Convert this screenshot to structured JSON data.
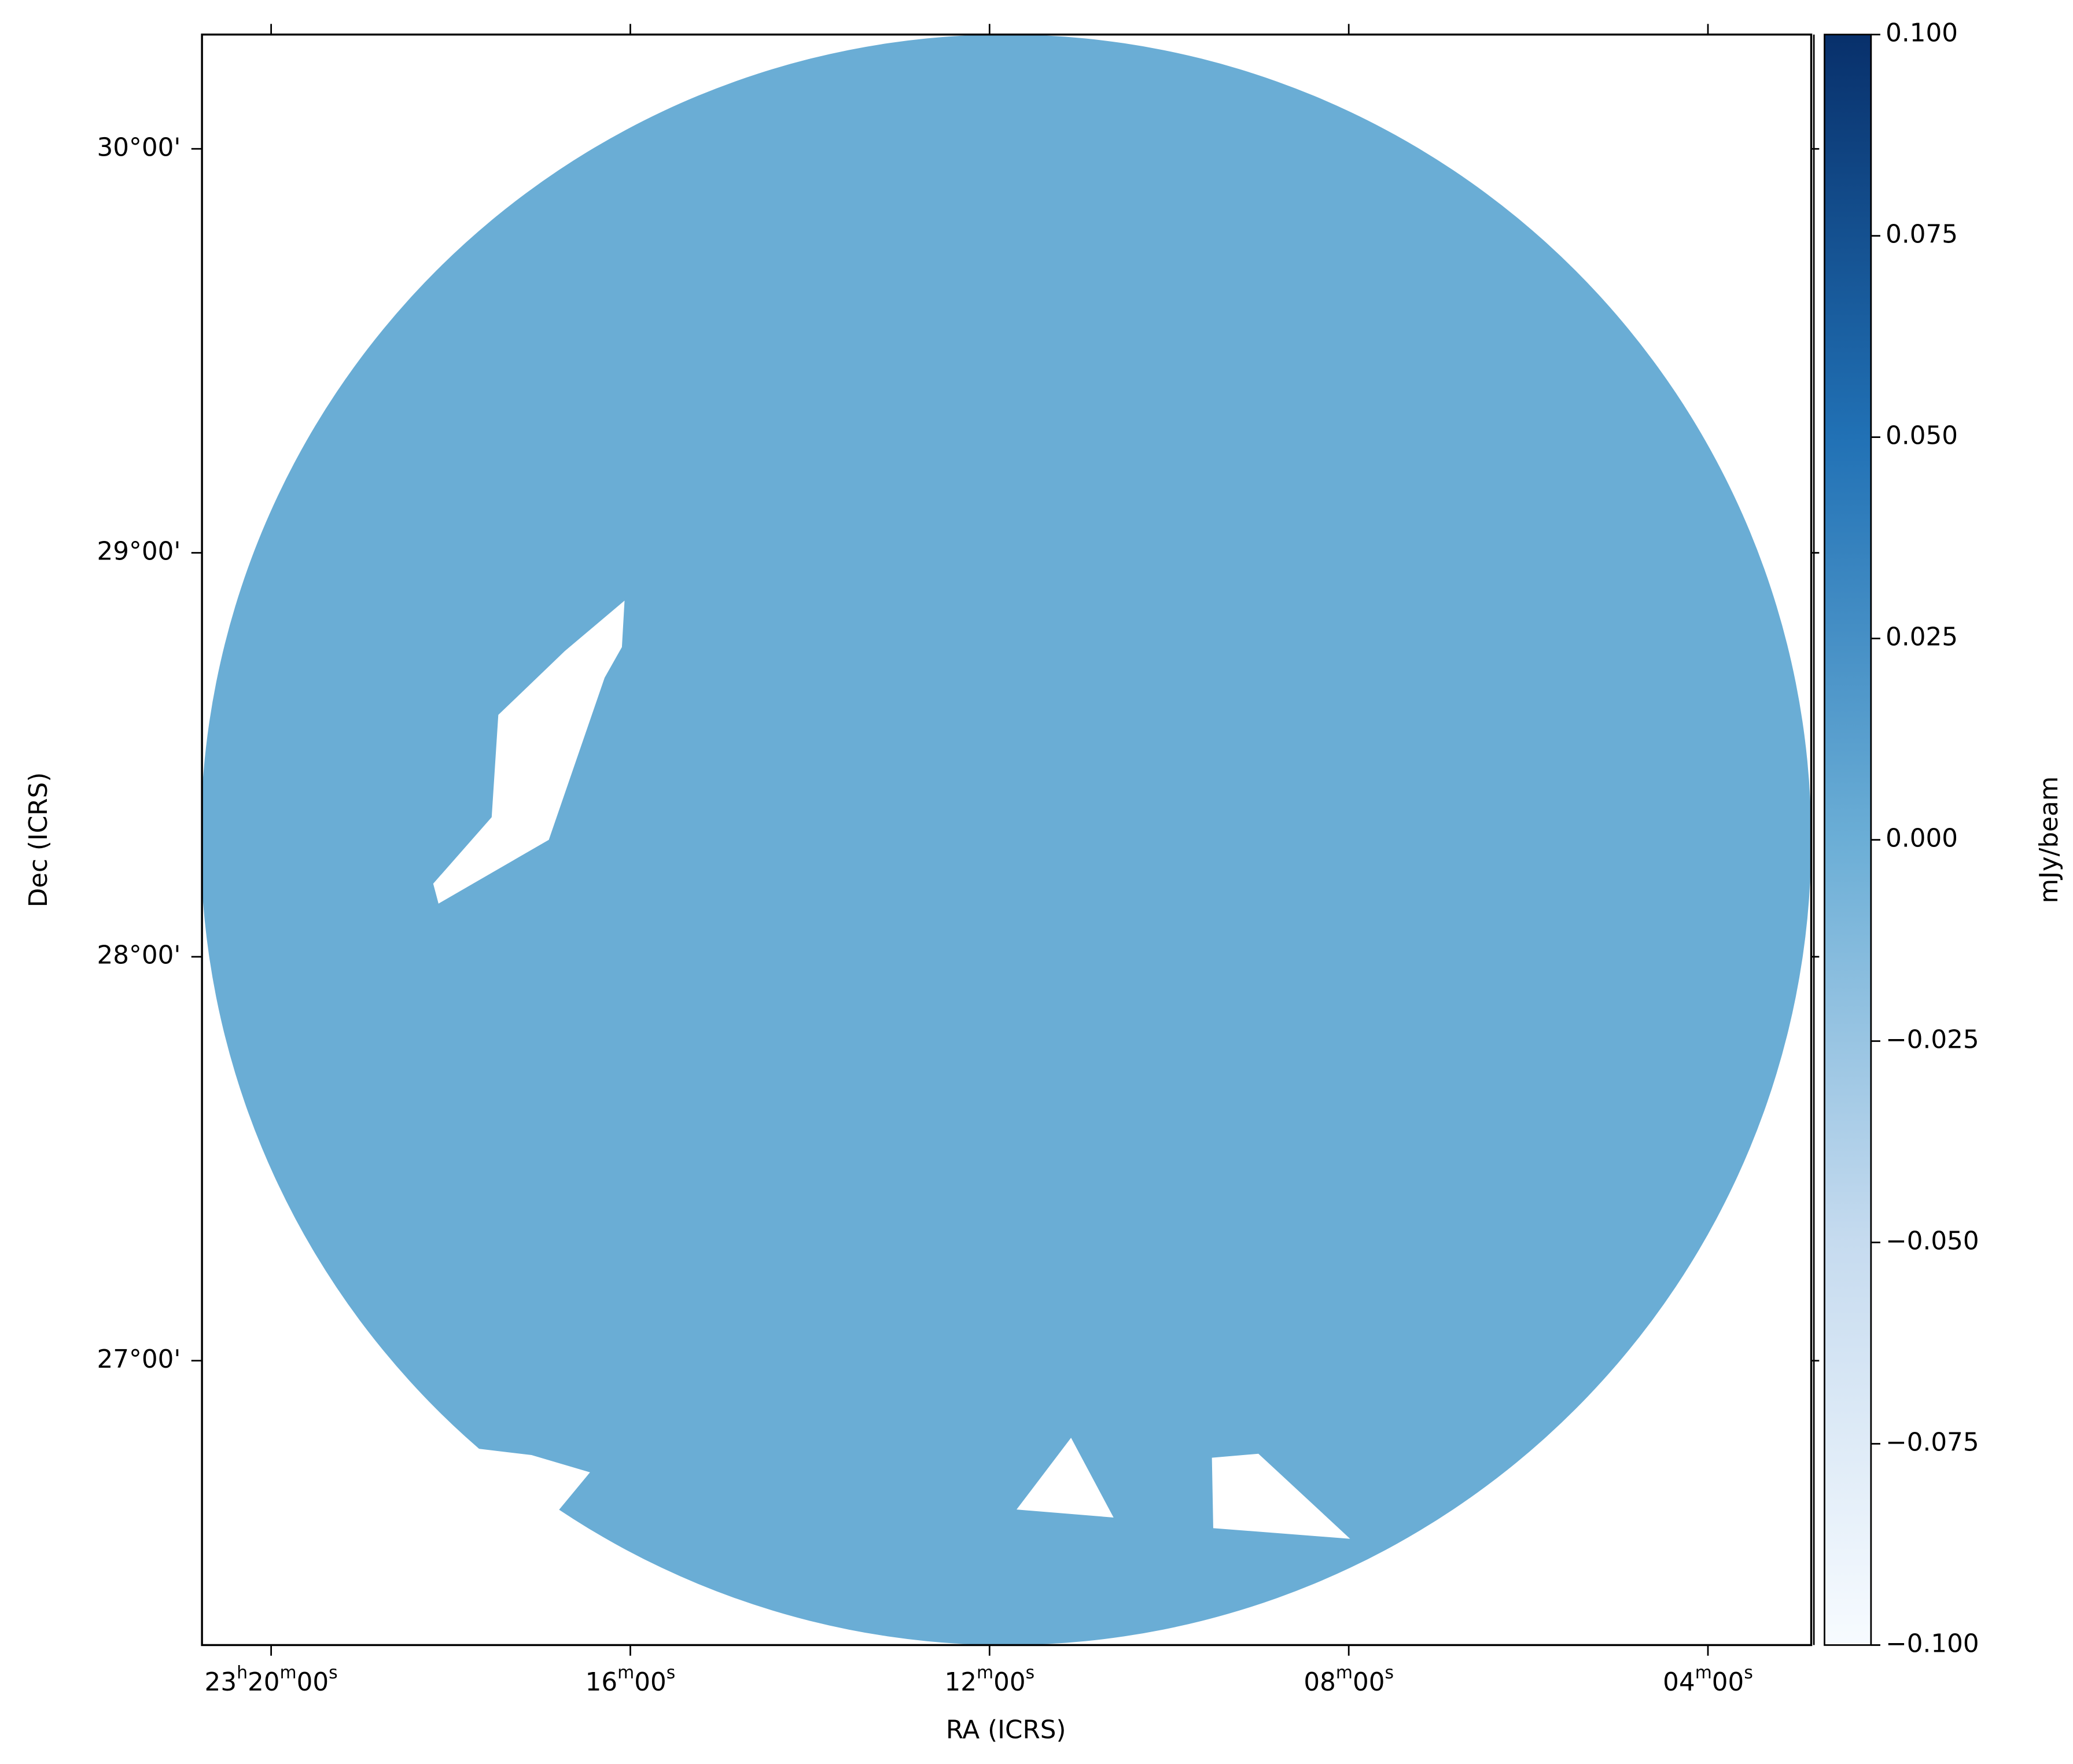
{
  "chart_data": {
    "type": "image",
    "xlabel": "RA (ICRS)",
    "ylabel": "Dec (ICRS)",
    "xlim": [
      20.77,
      2.85
    ],
    "xticks": [
      {
        "value": 20,
        "label": "23h20m00s"
      },
      {
        "value": 16,
        "label": "16m00s"
      },
      {
        "value": 12,
        "label": "12m00s"
      },
      {
        "value": 8,
        "label": "08m00s"
      },
      {
        "value": 4,
        "label": "04m00s"
      }
    ],
    "ylim": [
      26.296,
      30.283
    ],
    "yticks": [
      {
        "value": 30,
        "label": "30°00'"
      },
      {
        "value": 29,
        "label": "29°00'"
      },
      {
        "value": 28,
        "label": "28°00'"
      },
      {
        "value": 27,
        "label": "27°00'"
      }
    ],
    "image_color": "#6aadd5",
    "colorbar": {
      "label": "mJy/beam",
      "colors": [
        "#f7fbff",
        "#c6dbef",
        "#6baed6",
        "#2171b5",
        "#08306b"
      ],
      "lim": [
        -0.1,
        0.1
      ],
      "ticks": [
        {
          "value": 0.1,
          "label": "0.100"
        },
        {
          "value": 0.075,
          "label": "0.075"
        },
        {
          "value": 0.05,
          "label": "0.050"
        },
        {
          "value": 0.025,
          "label": "0.025"
        },
        {
          "value": 0,
          "label": "0.000"
        },
        {
          "value": -0.025,
          "label": "−0.025"
        },
        {
          "value": -0.05,
          "label": "−0.050"
        },
        {
          "value": -0.075,
          "label": "−0.075"
        },
        {
          "value": -0.1,
          "label": "−0.100"
        }
      ]
    }
  }
}
